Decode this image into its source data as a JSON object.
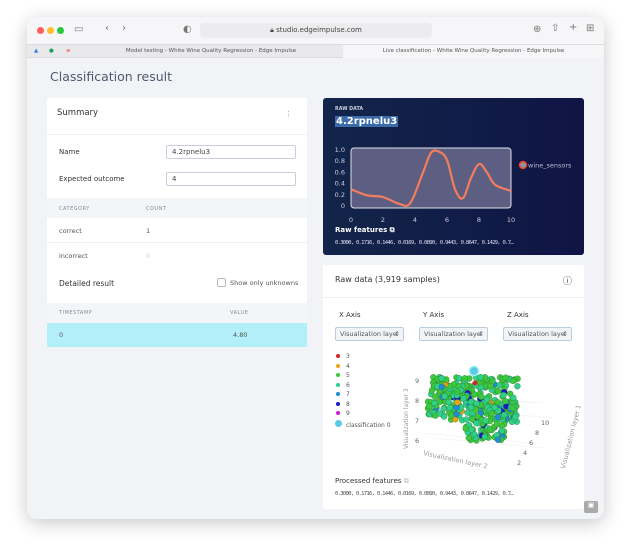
{
  "browser": {
    "url": "studio.edgeimpulse.com",
    "tabs": [
      "Model testing - White Wine Quality Regression - Edge Impulse",
      "Live classification - White Wine Quality Regression - Edge Impulse"
    ]
  },
  "page_title": "Classification result",
  "summary": {
    "title": "Summary",
    "name_label": "Name",
    "name_value": "4.2rpnelu3",
    "expected_label": "Expected outcome",
    "expected_value": "4",
    "headers": [
      "CATEGORY",
      "COUNT"
    ],
    "rows": [
      {
        "category": "correct",
        "count": "1"
      },
      {
        "category": "incorrect",
        "count": "0"
      }
    ],
    "detailed_title": "Detailed result",
    "show_unknowns": "Show only unknowns",
    "detail_headers": [
      "TIMESTAMP",
      "VALUE"
    ],
    "detail_rows": [
      {
        "timestamp": "0",
        "value": "4.80"
      }
    ]
  },
  "raw": {
    "kicker": "RAW DATA",
    "name": "4.2rpnelu3",
    "features_label": "Raw features",
    "features": "0.3000, 0.1716, 0.1446, 0.0169, 0.0890, 0.9443, 0.8647, 0.1429, 0.7…"
  },
  "chart_data": {
    "type": "line",
    "x": [
      0,
      1,
      2,
      3,
      3.7,
      4.5,
      5,
      5.5,
      6,
      6.5,
      7,
      7.5,
      8,
      8.5,
      9,
      10
    ],
    "series": [
      {
        "name": "wine_sensors",
        "values": [
          0.3,
          0.19,
          0.16,
          0.04,
          0.05,
          0.6,
          0.95,
          0.97,
          0.82,
          0.3,
          0.14,
          0.5,
          0.75,
          0.6,
          0.38,
          0.27
        ],
        "color": "#f47c5c"
      }
    ],
    "xlim": [
      0,
      10
    ],
    "ylim": [
      0,
      1.0
    ],
    "xticks": [
      "0",
      "2",
      "4",
      "6",
      "8",
      "10"
    ],
    "yticks": [
      "0",
      "0.2",
      "0.4",
      "0.6",
      "0.8",
      "1.0"
    ],
    "legend": "right"
  },
  "rawdata": {
    "title": "Raw data (3,919 samples)",
    "x_axis": "X Axis",
    "y_axis": "Y Axis",
    "z_axis": "Z Axis",
    "select": "Visualization laye",
    "legend": [
      {
        "label": "3",
        "color": "#d62728"
      },
      {
        "label": "4",
        "color": "#e8a317"
      },
      {
        "label": "5",
        "color": "#3cc83c"
      },
      {
        "label": "6",
        "color": "#2ed08a"
      },
      {
        "label": "7",
        "color": "#1f8ad6"
      },
      {
        "label": "8",
        "color": "#1a1acc"
      },
      {
        "label": "9",
        "color": "#d21ad2"
      },
      {
        "label": "classification 0",
        "color": "#5bc8e8"
      }
    ],
    "axis_z_ticks": [
      "9",
      "8",
      "7",
      "6"
    ],
    "axis_y_ticks": [
      "10",
      "8",
      "6",
      "4",
      "2"
    ],
    "axis_x_label": "Visualization layer 2",
    "axis_y_label": "Visualization layer 1",
    "axis_z_label": "Visualization layer 3",
    "processed_label": "Processed features",
    "processed": "0.3000, 0.1716, 0.1446, 0.0169, 0.0890, 0.9443, 0.8647, 0.1429, 0.7…"
  }
}
